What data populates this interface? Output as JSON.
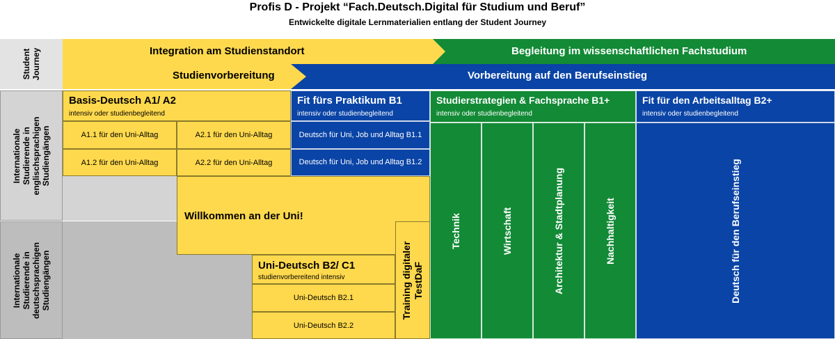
{
  "title": "Profis D - Projekt “Fach.Deutsch.Digital  für Studium  und Beruf”",
  "subtitle": "Entwickelte digitale Lernmaterialien entlang der Student Journey",
  "journey": {
    "label": "Student Journey",
    "band1_left": "Integration am Studienstandort",
    "band1_right": "Begleitung im wissenschaftlichen Fachstudium",
    "band2_left": "Studienvorbereitung",
    "band2_right": "Vorbereitung auf den Berufseinstieg"
  },
  "rows": {
    "english": "Internationale Studierende in englischsprachigen Studiengängen",
    "german": "Internationale Studierende in deutschsprachigen Studiengängen"
  },
  "basis": {
    "title": "Basis-Deutsch A1/ A2",
    "sub": "intensiv oder studienbegleitend",
    "a11": "A1.1 für den Uni-Alltag",
    "a21": "A2.1 für den Uni-Alltag",
    "a12": "A1.2 für den Uni-Alltag",
    "a22": "A2.2 für den Uni-Alltag"
  },
  "praktikum": {
    "title": "Fit fürs Praktikum B1",
    "sub": "intensiv oder studienbegleitend",
    "b11": "Deutsch für Uni, Job und Alltag B1.1",
    "b12": "Deutsch für Uni, Job und Alltag B1.2"
  },
  "willkommen": "Willkommen an der Uni!",
  "unideutsch": {
    "title": "Uni-Deutsch B2/ C1",
    "sub": "studienvorbereitend intensiv",
    "b21": "Uni-Deutsch B2.1",
    "b22": "Uni-Deutsch B2.2"
  },
  "testdaf": "Training digitaler TestDaF",
  "strategien": {
    "title": "Studierstrategien & Fachsprache B1+",
    "sub": "intensiv oder studienbegleitend",
    "columns": [
      "Technik",
      "Wirtschaft",
      "Architektur & Stadtplanung",
      "Nachhaltigkeit"
    ]
  },
  "arbeitsalltag": {
    "title": "Fit für den Arbeitsalltag B2+",
    "sub": "intensiv oder studienbegleitend",
    "column": "Deutsch für den Berufseinstieg"
  },
  "colors": {
    "yellow": "#FFD94D",
    "green": "#138A36",
    "blue": "#0A44A6",
    "gray": "#BDBDBD"
  }
}
